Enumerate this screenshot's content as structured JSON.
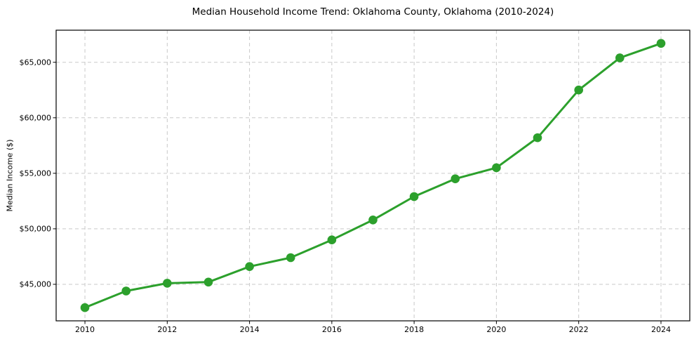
{
  "figure": {
    "background": "#ffffff",
    "text_color": "#000000"
  },
  "chart_data": {
    "type": "line",
    "title": "Median Household Income Trend: Oklahoma County, Oklahoma (2010-2024)",
    "xlabel": "",
    "ylabel": "Median Income ($)",
    "x": [
      2010,
      2011,
      2012,
      2013,
      2014,
      2015,
      2016,
      2017,
      2018,
      2019,
      2020,
      2021,
      2022,
      2023,
      2024
    ],
    "series": [
      {
        "name": "Median Household Income",
        "values": [
          42900,
          44400,
          45100,
          45200,
          46600,
          47400,
          49000,
          50800,
          52900,
          54500,
          55500,
          58200,
          62500,
          65400,
          66700
        ]
      }
    ],
    "line_color": "#2ca02c",
    "marker": "circle",
    "marker_radius": 6.3,
    "line_width": 3,
    "grid": true,
    "grid_style": "dashed",
    "grid_color": "#c9c9c9",
    "legend": false,
    "xlim": [
      2009.3,
      2024.7
    ],
    "ylim": [
      41710,
      67890
    ],
    "xticks": [
      2010,
      2012,
      2014,
      2016,
      2018,
      2020,
      2022,
      2024
    ],
    "xtick_labels": [
      "2010",
      "2012",
      "2014",
      "2016",
      "2018",
      "2020",
      "2022",
      "2024"
    ],
    "yticks": [
      45000,
      50000,
      55000,
      60000,
      65000
    ],
    "ytick_labels": [
      "$45,000",
      "$50,000",
      "$55,000",
      "$60,000",
      "$65,000"
    ]
  }
}
